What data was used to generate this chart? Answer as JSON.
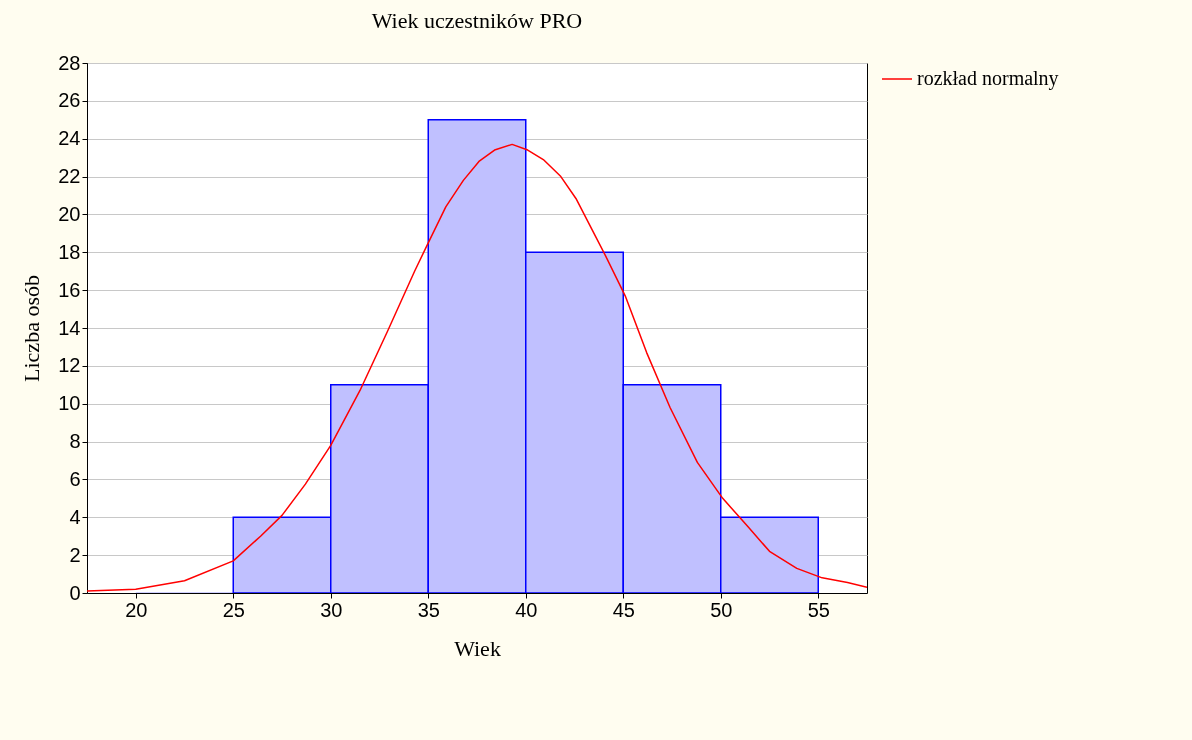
{
  "chart_data": {
    "type": "histogram",
    "title": "Wiek uczestników PRO",
    "xlabel": "Wiek",
    "ylabel": "Liczba osób",
    "bins": [
      20,
      25,
      30,
      35,
      40,
      45,
      50,
      55
    ],
    "values": [
      0,
      4,
      11,
      25,
      18,
      11,
      4
    ],
    "color": "#c0c0ff",
    "xlim": [
      17.5,
      57.5
    ],
    "xticks": [
      20,
      25,
      30,
      35,
      40,
      45,
      50,
      55
    ],
    "ylim": [
      0,
      28
    ],
    "yticks": [
      0,
      2,
      4,
      6,
      8,
      10,
      12,
      14,
      16,
      18,
      20,
      22,
      24,
      26,
      28
    ],
    "grid": "y",
    "legend": "right",
    "series": [
      {
        "name": "rozkład normalny",
        "type": "line",
        "color": "#ff0000",
        "x": [
          17.5,
          20,
          22.5,
          25,
          26.4,
          27.5,
          28.7,
          30,
          31.5,
          32.9,
          34.3,
          35,
          35.9,
          36.8,
          37.6,
          38.4,
          39.3,
          40.1,
          40.9,
          41.8,
          42.6,
          43.4,
          44.1,
          45.1,
          46.2,
          47.4,
          48.8,
          50.1,
          51.4,
          52.5,
          53.9,
          55.2,
          56.5,
          57.5
        ],
        "values": [
          0.1,
          0.2,
          0.65,
          1.7,
          3,
          4.1,
          5.75,
          7.8,
          10.7,
          13.8,
          17,
          18.5,
          20.4,
          21.8,
          22.8,
          23.4,
          23.7,
          23.4,
          22.9,
          22,
          20.8,
          19.2,
          17.8,
          15.7,
          12.7,
          9.8,
          6.9,
          5,
          3.5,
          2.2,
          1.3,
          0.8,
          0.55,
          0.3
        ]
      }
    ]
  }
}
